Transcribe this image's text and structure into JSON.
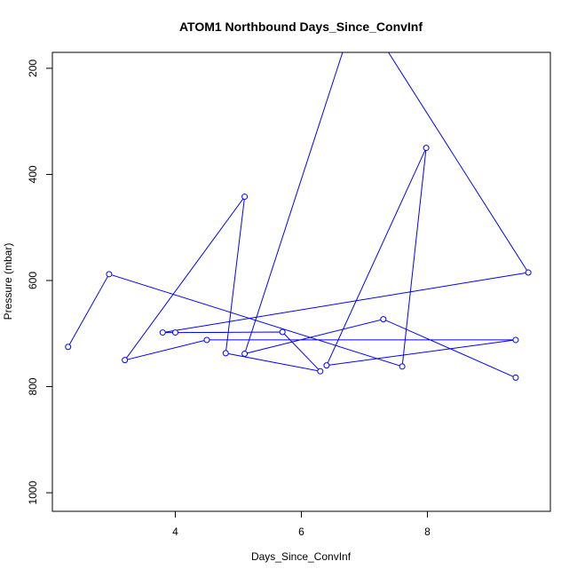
{
  "chart_data": {
    "type": "line",
    "title": "ATOM1 Northbound Days_Since_ConvInf",
    "xlabel": "Days_Since_ConvInf",
    "ylabel": "Pressure (mbar)",
    "xlim": [
      2.05,
      9.95
    ],
    "ylim": [
      1035,
      170
    ],
    "y_reversed": true,
    "x_ticks": [
      4,
      6,
      8
    ],
    "y_ticks": [
      200,
      400,
      600,
      800,
      1000
    ],
    "series": [
      {
        "color": "#0000ff",
        "marker": "open-circle",
        "points": [
          {
            "x": 2.3,
            "y": 725
          },
          {
            "x": 2.95,
            "y": 588
          },
          {
            "x": 7.6,
            "y": 762
          },
          {
            "x": 7.98,
            "y": 350
          },
          {
            "x": 6.4,
            "y": 760
          },
          {
            "x": 9.4,
            "y": 712
          },
          {
            "x": 4.5,
            "y": 712
          },
          {
            "x": 3.2,
            "y": 750
          },
          {
            "x": 5.1,
            "y": 442
          },
          {
            "x": 4.8,
            "y": 737
          },
          {
            "x": 6.3,
            "y": 771
          },
          {
            "x": 5.7,
            "y": 697
          },
          {
            "x": 4.0,
            "y": 698
          },
          {
            "x": 3.8,
            "y": 698
          },
          {
            "x": 9.6,
            "y": 585
          },
          {
            "x": 6.9,
            "y": 80
          },
          {
            "x": 5.1,
            "y": 738
          },
          {
            "x": 7.3,
            "y": 673
          },
          {
            "x": 9.4,
            "y": 783
          }
        ],
        "visible_markers": [
          0,
          1,
          2,
          3,
          4,
          5,
          6,
          7,
          8,
          9,
          10,
          11,
          12,
          13,
          14,
          16,
          17,
          18
        ]
      }
    ],
    "grid": false,
    "legend": "none"
  }
}
